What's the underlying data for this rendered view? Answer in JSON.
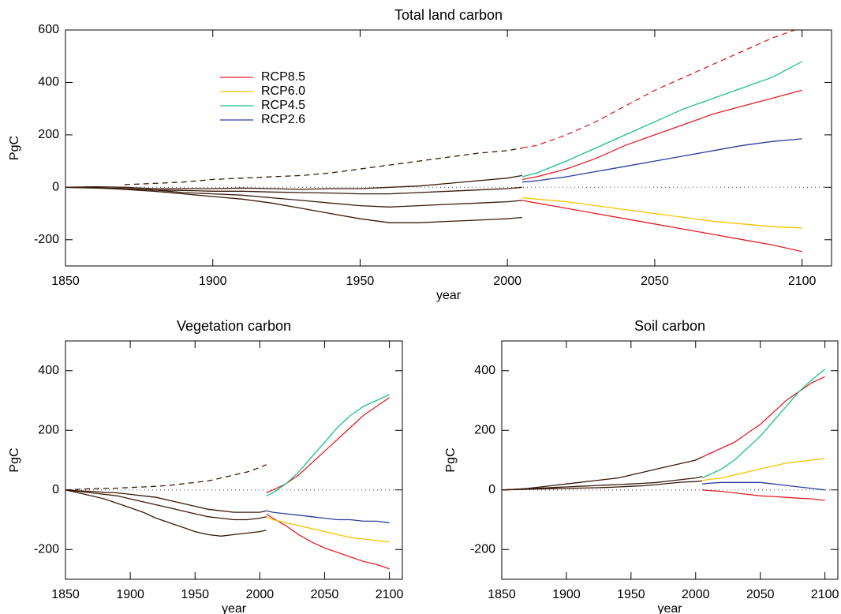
{
  "chart_data": [
    {
      "type": "line",
      "title": "Total land carbon",
      "xlabel": "year",
      "ylabel": "PgC",
      "legend": "upper left",
      "x": [
        1850,
        1860,
        1870,
        1880,
        1890,
        1900,
        1910,
        1920,
        1930,
        1940,
        1950,
        1960,
        1970,
        1980,
        1990,
        2000,
        2005,
        2010,
        2020,
        2030,
        2040,
        2050,
        2060,
        2070,
        2080,
        2090,
        2100
      ],
      "xlim": [
        1850,
        2110
      ],
      "ylim": [
        -300,
        600
      ],
      "xticks": [
        1850,
        1900,
        1950,
        2000,
        2050,
        2100
      ],
      "yticks": [
        -200,
        0,
        200,
        400,
        600
      ],
      "series": [
        {
          "name": "RCP8.5",
          "color": "#e0202a",
          "values": [
            null,
            null,
            null,
            null,
            null,
            null,
            null,
            null,
            null,
            null,
            null,
            null,
            null,
            null,
            null,
            null,
            30,
            40,
            70,
            110,
            160,
            200,
            240,
            280,
            310,
            340,
            370
          ]
        },
        {
          "name": "RCP6.0",
          "color": "#f5c400",
          "values": [
            null,
            null,
            null,
            null,
            null,
            null,
            null,
            null,
            null,
            null,
            null,
            null,
            null,
            null,
            null,
            null,
            -40,
            -45,
            -55,
            -70,
            -85,
            -100,
            -115,
            -130,
            -140,
            -150,
            -155
          ]
        },
        {
          "name": "RCP4.5",
          "color": "#1fbf8f",
          "values": [
            null,
            null,
            null,
            null,
            null,
            null,
            null,
            null,
            null,
            null,
            null,
            null,
            null,
            null,
            null,
            null,
            40,
            55,
            100,
            150,
            200,
            250,
            300,
            340,
            380,
            420,
            480
          ]
        },
        {
          "name": "RCP2.6",
          "color": "#2a3d9a",
          "values": [
            null,
            null,
            null,
            null,
            null,
            null,
            null,
            null,
            null,
            null,
            null,
            null,
            null,
            null,
            null,
            null,
            20,
            25,
            40,
            60,
            80,
            100,
            120,
            140,
            160,
            175,
            185
          ]
        },
        {
          "color": "#e0202a",
          "values": [
            null,
            null,
            null,
            null,
            null,
            null,
            null,
            null,
            null,
            null,
            null,
            null,
            null,
            null,
            null,
            null,
            -50,
            -60,
            -80,
            -100,
            -120,
            -140,
            -160,
            -180,
            -200,
            -220,
            -245
          ]
        },
        {
          "color": "#e0202a",
          "dash": true,
          "values": [
            null,
            null,
            null,
            null,
            null,
            null,
            null,
            null,
            null,
            null,
            null,
            null,
            null,
            null,
            null,
            null,
            150,
            160,
            200,
            250,
            310,
            370,
            420,
            470,
            520,
            570,
            610
          ]
        },
        {
          "color": "#3a1a0a",
          "values": [
            0,
            2,
            0,
            -5,
            -5,
            -5,
            -3,
            -5,
            -8,
            -5,
            -5,
            0,
            5,
            15,
            25,
            35,
            45,
            null,
            null,
            null,
            null,
            null,
            null,
            null,
            null,
            null,
            null
          ]
        },
        {
          "color": "#3a1a0a",
          "values": [
            0,
            -2,
            -5,
            -10,
            -12,
            -15,
            -15,
            -18,
            -20,
            -22,
            -25,
            -25,
            -20,
            -15,
            -10,
            -5,
            0,
            null,
            null,
            null,
            null,
            null,
            null,
            null,
            null,
            null,
            null
          ]
        },
        {
          "color": "#3a1a0a",
          "values": [
            0,
            -3,
            -5,
            -10,
            -20,
            -25,
            -30,
            -40,
            -50,
            -60,
            -70,
            -75,
            -70,
            -65,
            -60,
            -55,
            -50,
            null,
            null,
            null,
            null,
            null,
            null,
            null,
            null,
            null,
            null
          ]
        },
        {
          "color": "#3a1a0a",
          "values": [
            0,
            -2,
            -8,
            -15,
            -25,
            -35,
            -45,
            -60,
            -80,
            -100,
            -120,
            -135,
            -135,
            -130,
            -125,
            -120,
            -115,
            null,
            null,
            null,
            null,
            null,
            null,
            null,
            null,
            null,
            null
          ]
        },
        {
          "color": "#3a1a0a",
          "dash": true,
          "values": [
            null,
            null,
            10,
            15,
            20,
            30,
            35,
            40,
            45,
            55,
            70,
            85,
            100,
            115,
            130,
            140,
            150,
            null,
            null,
            null,
            null,
            null,
            null,
            null,
            null,
            null,
            null
          ]
        }
      ]
    },
    {
      "type": "line",
      "title": "Vegetation carbon",
      "xlabel": "year",
      "ylabel": "PgC",
      "x": [
        1850,
        1860,
        1870,
        1880,
        1890,
        1900,
        1910,
        1920,
        1930,
        1940,
        1950,
        1960,
        1970,
        1980,
        1990,
        2000,
        2005,
        2010,
        2020,
        2030,
        2040,
        2050,
        2060,
        2070,
        2080,
        2090,
        2100
      ],
      "xlim": [
        1850,
        2110
      ],
      "ylim": [
        -300,
        500
      ],
      "xticks": [
        1850,
        1900,
        1950,
        2000,
        2050,
        2100
      ],
      "yticks": [
        -200,
        0,
        200,
        400
      ],
      "series": [
        {
          "color": "#e0202a",
          "values": [
            null,
            null,
            null,
            null,
            null,
            null,
            null,
            null,
            null,
            null,
            null,
            null,
            null,
            null,
            null,
            null,
            -10,
            0,
            20,
            50,
            90,
            130,
            170,
            210,
            250,
            280,
            310
          ]
        },
        {
          "color": "#e0202a",
          "values": [
            null,
            null,
            null,
            null,
            null,
            null,
            null,
            null,
            null,
            null,
            null,
            null,
            null,
            null,
            null,
            null,
            -80,
            -95,
            -120,
            -150,
            -175,
            -195,
            -210,
            -225,
            -240,
            -250,
            -265
          ]
        },
        {
          "color": "#f5c400",
          "values": [
            null,
            null,
            null,
            null,
            null,
            null,
            null,
            null,
            null,
            null,
            null,
            null,
            null,
            null,
            null,
            null,
            -90,
            -100,
            -110,
            -120,
            -130,
            -140,
            -150,
            -160,
            -165,
            -170,
            -175
          ]
        },
        {
          "color": "#1fbf8f",
          "values": [
            null,
            null,
            null,
            null,
            null,
            null,
            null,
            null,
            null,
            null,
            null,
            null,
            null,
            null,
            null,
            null,
            -20,
            -10,
            20,
            60,
            110,
            160,
            210,
            250,
            280,
            300,
            320
          ]
        },
        {
          "color": "#2a3d9a",
          "values": [
            null,
            null,
            null,
            null,
            null,
            null,
            null,
            null,
            null,
            null,
            null,
            null,
            null,
            null,
            null,
            null,
            -70,
            -75,
            -80,
            -85,
            -90,
            -95,
            -100,
            -100,
            -105,
            -105,
            -110
          ]
        },
        {
          "color": "#3a1a0a",
          "values": [
            0,
            -5,
            -10,
            -15,
            -20,
            -30,
            -40,
            -50,
            -60,
            -70,
            -80,
            -90,
            -95,
            -100,
            -100,
            -95,
            -90,
            null,
            null,
            null,
            null,
            null,
            null,
            null,
            null,
            null,
            null
          ]
        },
        {
          "color": "#3a1a0a",
          "values": [
            0,
            -10,
            -20,
            -30,
            -45,
            -60,
            -75,
            -95,
            -110,
            -125,
            -140,
            -150,
            -155,
            -150,
            -145,
            -140,
            -135,
            null,
            null,
            null,
            null,
            null,
            null,
            null,
            null,
            null,
            null
          ]
        },
        {
          "color": "#3a1a0a",
          "values": [
            0,
            -3,
            -5,
            -8,
            -10,
            -15,
            -20,
            -25,
            -35,
            -45,
            -55,
            -65,
            -70,
            -75,
            -75,
            -75,
            -70,
            null,
            null,
            null,
            null,
            null,
            null,
            null,
            null,
            null,
            null
          ]
        },
        {
          "color": "#3a1a0a",
          "dash": true,
          "values": [
            0,
            2,
            4,
            5,
            6,
            8,
            10,
            12,
            15,
            20,
            25,
            30,
            40,
            50,
            60,
            75,
            85,
            null,
            null,
            null,
            null,
            null,
            null,
            null,
            null,
            null,
            null
          ]
        }
      ]
    },
    {
      "type": "line",
      "title": "Soil carbon",
      "xlabel": "year",
      "ylabel": "PgC",
      "x": [
        1850,
        1860,
        1870,
        1880,
        1890,
        1900,
        1910,
        1920,
        1930,
        1940,
        1950,
        1960,
        1970,
        1980,
        1990,
        2000,
        2005,
        2010,
        2020,
        2030,
        2040,
        2050,
        2060,
        2070,
        2080,
        2090,
        2100
      ],
      "xlim": [
        1850,
        2110
      ],
      "ylim": [
        -300,
        500
      ],
      "xticks": [
        1850,
        1900,
        1950,
        2000,
        2050,
        2100
      ],
      "yticks": [
        -200,
        0,
        200,
        400
      ],
      "series": [
        {
          "color": "#e0202a",
          "values": [
            null,
            null,
            null,
            null,
            null,
            null,
            null,
            null,
            null,
            null,
            null,
            null,
            null,
            null,
            null,
            null,
            110,
            120,
            140,
            160,
            190,
            220,
            260,
            300,
            330,
            360,
            380
          ]
        },
        {
          "color": "#e0202a",
          "values": [
            null,
            null,
            null,
            null,
            null,
            null,
            null,
            null,
            null,
            null,
            null,
            null,
            null,
            null,
            null,
            null,
            0,
            -2,
            -5,
            -10,
            -15,
            -20,
            -22,
            -25,
            -28,
            -30,
            -35
          ]
        },
        {
          "color": "#f5c400",
          "values": [
            null,
            null,
            null,
            null,
            null,
            null,
            null,
            null,
            null,
            null,
            null,
            null,
            null,
            null,
            null,
            null,
            30,
            35,
            40,
            50,
            60,
            70,
            80,
            90,
            95,
            100,
            105
          ]
        },
        {
          "color": "#1fbf8f",
          "values": [
            null,
            null,
            null,
            null,
            null,
            null,
            null,
            null,
            null,
            null,
            null,
            null,
            null,
            null,
            null,
            null,
            40,
            50,
            70,
            100,
            140,
            180,
            230,
            280,
            330,
            370,
            405
          ]
        },
        {
          "color": "#2a3d9a",
          "values": [
            null,
            null,
            null,
            null,
            null,
            null,
            null,
            null,
            null,
            null,
            null,
            null,
            null,
            null,
            null,
            null,
            20,
            22,
            25,
            25,
            25,
            25,
            20,
            15,
            10,
            5,
            0
          ]
        },
        {
          "color": "#3a1a0a",
          "values": [
            0,
            2,
            5,
            10,
            15,
            20,
            25,
            30,
            35,
            40,
            50,
            60,
            70,
            80,
            90,
            100,
            110,
            null,
            null,
            null,
            null,
            null,
            null,
            null,
            null,
            null,
            null
          ]
        },
        {
          "color": "#3a1a0a",
          "values": [
            0,
            2,
            4,
            6,
            8,
            10,
            12,
            14,
            16,
            18,
            20,
            22,
            25,
            30,
            35,
            40,
            45,
            null,
            null,
            null,
            null,
            null,
            null,
            null,
            null,
            null,
            null
          ]
        },
        {
          "color": "#3a1a0a",
          "values": [
            0,
            1,
            2,
            3,
            4,
            5,
            6,
            7,
            8,
            10,
            12,
            14,
            18,
            22,
            26,
            28,
            30,
            null,
            null,
            null,
            null,
            null,
            null,
            null,
            null,
            null,
            null
          ]
        }
      ]
    }
  ]
}
